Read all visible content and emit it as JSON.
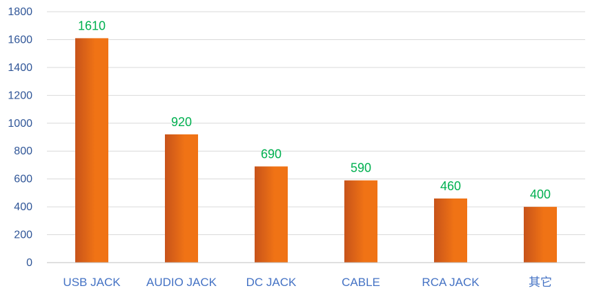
{
  "chart_data": {
    "type": "bar",
    "categories": [
      "USB JACK",
      "AUDIO JACK",
      "DC JACK",
      "CABLE",
      "RCA JACK",
      "其它"
    ],
    "values": [
      1610,
      920,
      690,
      590,
      460,
      400
    ],
    "data_labels": [
      "1610",
      "920",
      "690",
      "590",
      "460",
      "400"
    ],
    "ylim": [
      0,
      1800
    ],
    "yticks": [
      0,
      200,
      400,
      600,
      800,
      1000,
      1200,
      1400,
      1600,
      1800
    ],
    "grid": true,
    "legend": "none",
    "colors": {
      "bar_dark": "#c7531a",
      "bar_light": "#f07315",
      "data_label": "#00b050",
      "y_tick_label": "#2f5597",
      "x_tick_label": "#4472c4",
      "gridline": "#d9d9d9"
    }
  }
}
